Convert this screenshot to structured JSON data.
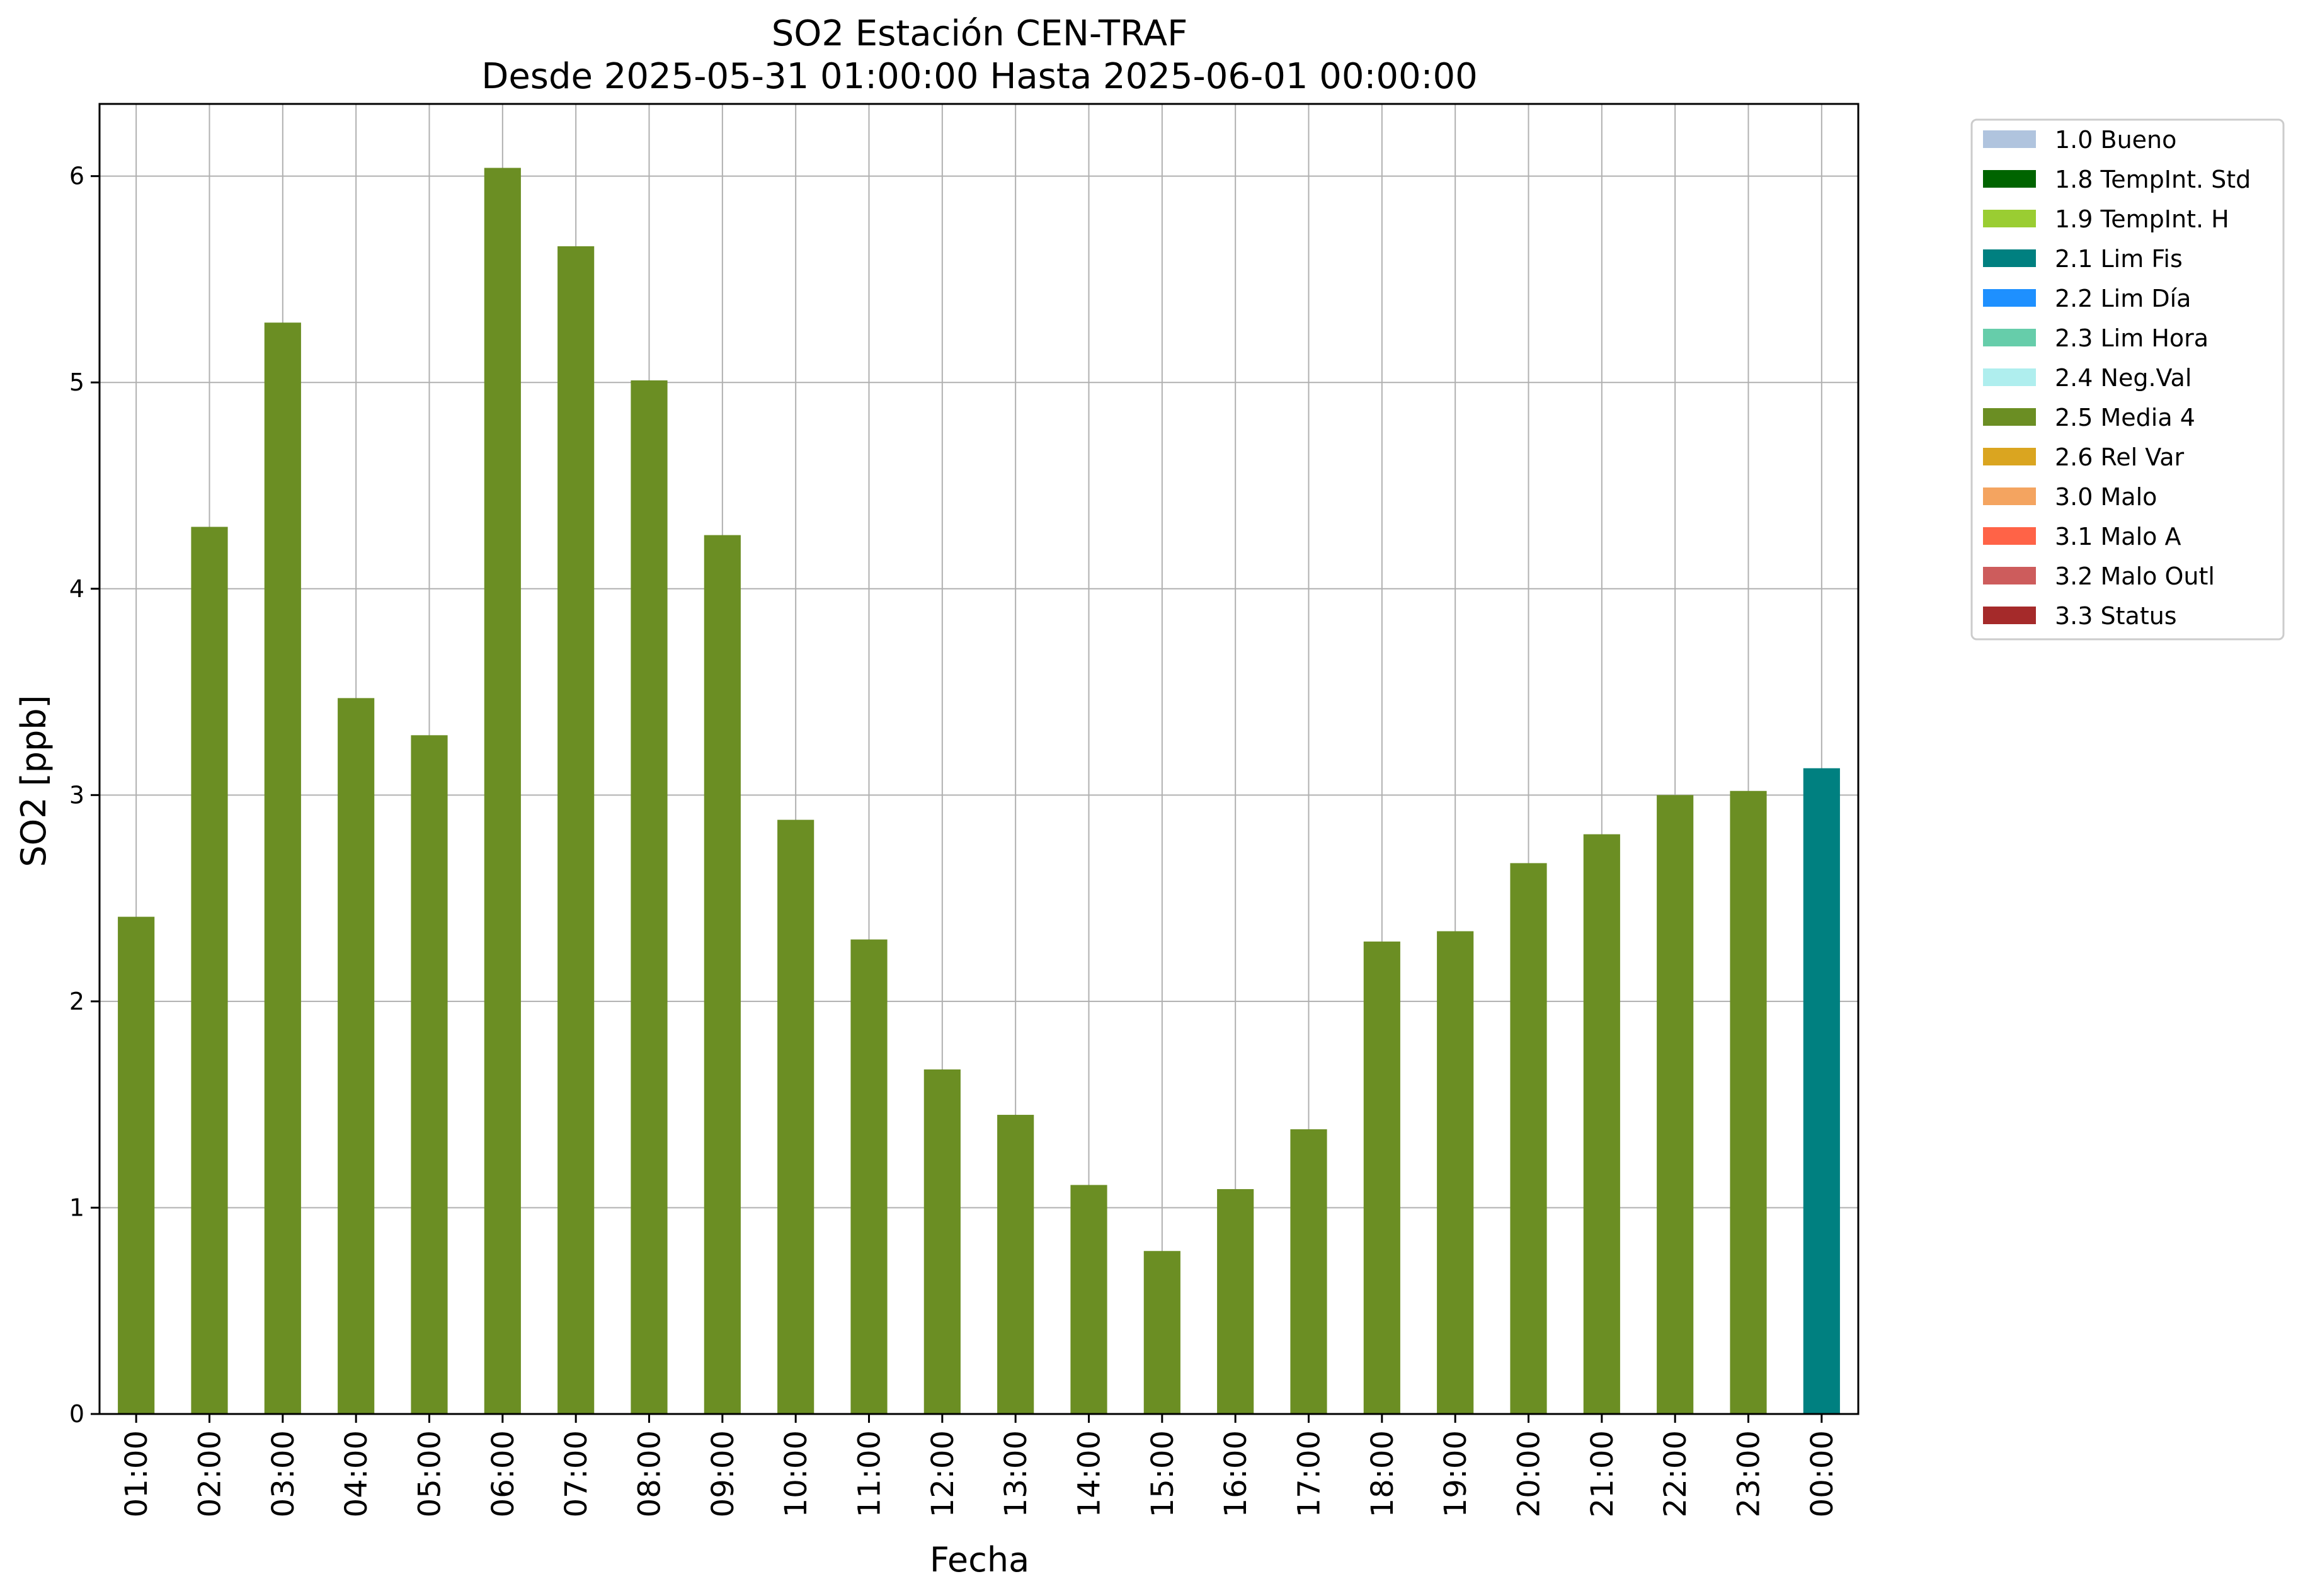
{
  "chart_data": {
    "type": "bar",
    "title": "SO2 Estación CEN-TRAF",
    "subtitle": "Desde 2025-05-31 01:00:00 Hasta 2025-06-01 00:00:00",
    "xlabel": "Fecha",
    "ylabel": "SO2 [ppb]",
    "ylim": [
      0,
      6.35
    ],
    "yticks": [
      "0",
      "1",
      "2",
      "3",
      "4",
      "5",
      "6"
    ],
    "grid": true,
    "legend_position": "outside-top-right",
    "categories": [
      "01:00",
      "02:00",
      "03:00",
      "04:00",
      "05:00",
      "06:00",
      "07:00",
      "08:00",
      "09:00",
      "10:00",
      "11:00",
      "12:00",
      "13:00",
      "14:00",
      "15:00",
      "16:00",
      "17:00",
      "18:00",
      "19:00",
      "20:00",
      "21:00",
      "22:00",
      "23:00",
      "00:00"
    ],
    "values": [
      2.41,
      4.3,
      5.29,
      3.47,
      3.29,
      6.04,
      5.66,
      5.01,
      4.26,
      2.88,
      2.3,
      1.67,
      1.45,
      1.11,
      0.79,
      1.09,
      1.38,
      2.29,
      2.34,
      2.67,
      2.81,
      3.0,
      3.02,
      3.13
    ],
    "flags": [
      "2.5 Media 4",
      "2.5 Media 4",
      "2.5 Media 4",
      "2.5 Media 4",
      "2.5 Media 4",
      "2.5 Media 4",
      "2.5 Media 4",
      "2.5 Media 4",
      "2.5 Media 4",
      "2.5 Media 4",
      "2.5 Media 4",
      "2.5 Media 4",
      "2.5 Media 4",
      "2.5 Media 4",
      "2.5 Media 4",
      "2.5 Media 4",
      "2.5 Media 4",
      "2.5 Media 4",
      "2.5 Media 4",
      "2.5 Media 4",
      "2.5 Media 4",
      "2.5 Media 4",
      "2.5 Media 4",
      "2.1 Lim Fis"
    ],
    "legend": [
      {
        "label": "1.0 Bueno",
        "color": "#b0c4de"
      },
      {
        "label": "1.8 TempInt. Std",
        "color": "#006400"
      },
      {
        "label": "1.9 TempInt. H",
        "color": "#9acd32"
      },
      {
        "label": "2.1 Lim Fis",
        "color": "#008080"
      },
      {
        "label": "2.2 Lim Día",
        "color": "#1e90ff"
      },
      {
        "label": "2.3 Lim Hora",
        "color": "#66cdaa"
      },
      {
        "label": "2.4 Neg.Val",
        "color": "#afeeee"
      },
      {
        "label": "2.5 Media 4",
        "color": "#6b8e23"
      },
      {
        "label": "2.6 Rel Var",
        "color": "#daa520"
      },
      {
        "label": "3.0 Malo",
        "color": "#f4a460"
      },
      {
        "label": "3.1 Malo A",
        "color": "#ff6347"
      },
      {
        "label": "3.2 Malo Outl",
        "color": "#cd5c5c"
      },
      {
        "label": "3.3 Status",
        "color": "#a52a2a"
      }
    ]
  }
}
